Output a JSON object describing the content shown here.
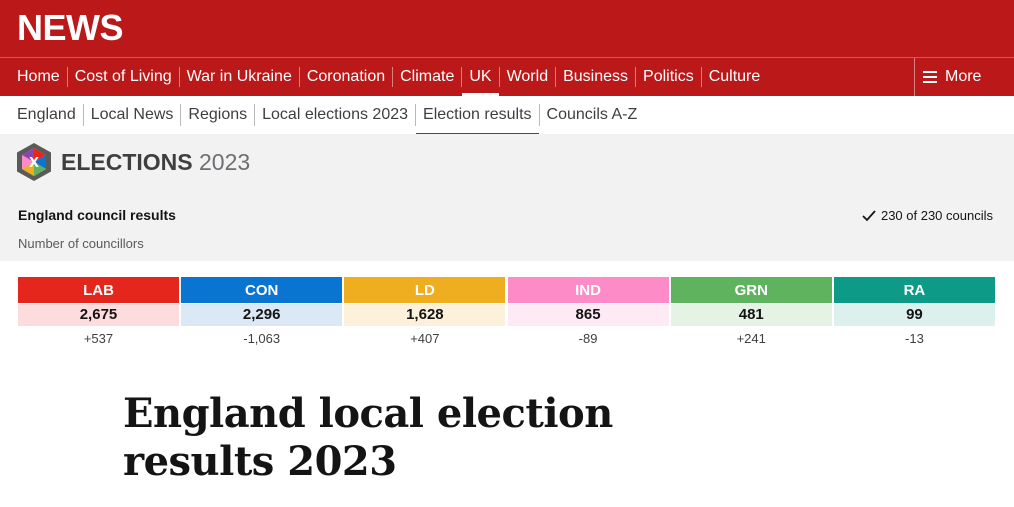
{
  "brand": "NEWS",
  "nav": {
    "items": [
      {
        "label": "Home"
      },
      {
        "label": "Cost of Living"
      },
      {
        "label": "War in Ukraine"
      },
      {
        "label": "Coronation"
      },
      {
        "label": "Climate"
      },
      {
        "label": "UK",
        "active": true
      },
      {
        "label": "World"
      },
      {
        "label": "Business"
      },
      {
        "label": "Politics"
      },
      {
        "label": "Culture"
      }
    ],
    "more_label": "More"
  },
  "subnav": {
    "items": [
      {
        "label": "England"
      },
      {
        "label": "Local News"
      },
      {
        "label": "Regions"
      },
      {
        "label": "Local elections 2023"
      },
      {
        "label": "Election results",
        "active": true
      },
      {
        "label": "Councils A-Z"
      }
    ]
  },
  "elections": {
    "title_word": "ELECTIONS",
    "title_year": "2023",
    "council_heading": "England council results",
    "progress_text": "230 of 230 councils",
    "councillors_label": "Number of councillors"
  },
  "parties": [
    {
      "abbr": "LAB",
      "seats": "2,675",
      "change": "+537",
      "color": "#e4261d",
      "tint": "#fcdcdc"
    },
    {
      "abbr": "CON",
      "seats": "2,296",
      "change": "-1,063",
      "color": "#0a75d1",
      "tint": "#dbe9f6"
    },
    {
      "abbr": "LD",
      "seats": "1,628",
      "change": "+407",
      "color": "#efad20",
      "tint": "#fdf1dc"
    },
    {
      "abbr": "IND",
      "seats": "865",
      "change": "-89",
      "color": "#fd8bc7",
      "tint": "#feeaf5"
    },
    {
      "abbr": "GRN",
      "seats": "481",
      "change": "+241",
      "color": "#5fb35e",
      "tint": "#e4f3e4"
    },
    {
      "abbr": "RA",
      "seats": "99",
      "change": "-13",
      "color": "#0d9b87",
      "tint": "#dcf1ee"
    }
  ],
  "headline": "England local election results 2023"
}
